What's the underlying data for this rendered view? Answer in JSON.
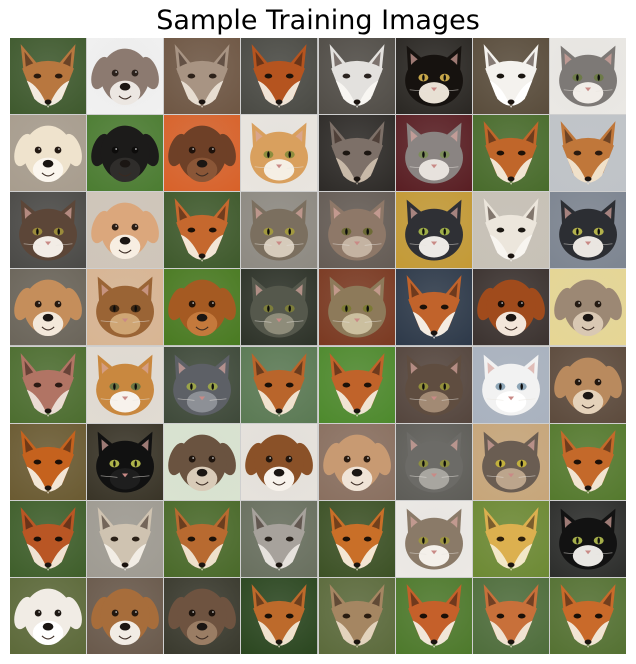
{
  "title": "Sample Training Images",
  "images": [
    {
      "animal": "fox",
      "bg": "#3f5a2e",
      "fur": "#b8773f",
      "accent": "#f2eadf",
      "eye": "#2a1a0e"
    },
    {
      "animal": "dog",
      "bg": "#f1f1f1",
      "fur": "#8c7a70",
      "accent": "#ece7e2",
      "eye": "#2c221c"
    },
    {
      "animal": "fox",
      "bg": "#6f5744",
      "fur": "#a89483",
      "accent": "#e7ddd1",
      "eye": "#2d221a"
    },
    {
      "animal": "fox",
      "bg": "#4a4a44",
      "fur": "#b5541f",
      "accent": "#f0e4d6",
      "eye": "#1d1209"
    },
    {
      "animal": "fox",
      "bg": "#514d47",
      "fur": "#e3e1de",
      "accent": "#f8f6f2",
      "eye": "#2b2420"
    },
    {
      "animal": "cat",
      "bg": "#2b2824",
      "fur": "#16120f",
      "accent": "#e8e0d4",
      "eye": "#c6a64a"
    },
    {
      "animal": "fox",
      "bg": "#5a4d3c",
      "fur": "#f4f2ee",
      "accent": "#ffffff",
      "eye": "#191510"
    },
    {
      "animal": "cat",
      "bg": "#eae8e4",
      "fur": "#7d7976",
      "accent": "#f1ede8",
      "eye": "#6d7a48"
    },
    {
      "animal": "dog",
      "bg": "#a89d8e",
      "fur": "#efe3cd",
      "accent": "#fbf6ee",
      "eye": "#241a13"
    },
    {
      "animal": "dog",
      "bg": "#4c7d32",
      "fur": "#1c1b1a",
      "accent": "#2f2d2b",
      "eye": "#0d0c0b"
    },
    {
      "animal": "dog",
      "bg": "#d8622a",
      "fur": "#6e4027",
      "accent": "#8a5637",
      "eye": "#1f120b"
    },
    {
      "animal": "cat",
      "bg": "#e9e5df",
      "fur": "#d9a05e",
      "accent": "#f5efe4",
      "eye": "#8d8d3e"
    },
    {
      "animal": "fox",
      "bg": "#2e2b28",
      "fur": "#7d7068",
      "accent": "#c8b9a8",
      "eye": "#1c1611"
    },
    {
      "animal": "cat",
      "bg": "#5a1f24",
      "fur": "#8a8482",
      "accent": "#e7e2dd",
      "eye": "#7d8e5a"
    },
    {
      "animal": "fox",
      "bg": "#496c2c",
      "fur": "#c0662a",
      "accent": "#f1e5d3",
      "eye": "#1c1108"
    },
    {
      "animal": "fox",
      "bg": "#bfc3c8",
      "fur": "#c0773a",
      "accent": "#f0e1ca",
      "eye": "#2a1a0f"
    },
    {
      "animal": "cat",
      "bg": "#4b4a47",
      "fur": "#5c4638",
      "accent": "#f2ece6",
      "eye": "#9b8b3b"
    },
    {
      "animal": "dog",
      "bg": "#cfc5b9",
      "fur": "#dba77c",
      "accent": "#f7eee2",
      "eye": "#2b1c12"
    },
    {
      "animal": "fox",
      "bg": "#3f5a2c",
      "fur": "#c5682e",
      "accent": "#f3e6d6",
      "eye": "#1a1008"
    },
    {
      "animal": "cat",
      "bg": "#8e8a82",
      "fur": "#7b6f5f",
      "accent": "#d6cbbb",
      "eye": "#a29940"
    },
    {
      "animal": "cat",
      "bg": "#655c55",
      "fur": "#8e7868",
      "accent": "#c4b3a2",
      "eye": "#6d6a36"
    },
    {
      "animal": "cat",
      "bg": "#c49a36",
      "fur": "#2f3035",
      "accent": "#ece9e5",
      "eye": "#9eae48"
    },
    {
      "animal": "fox",
      "bg": "#c7c1b6",
      "fur": "#ece6dc",
      "accent": "#f8f5f0",
      "eye": "#1c1813"
    },
    {
      "animal": "cat",
      "bg": "#7d8591",
      "fur": "#2c2e33",
      "accent": "#eae6e1",
      "eye": "#b3b24c"
    },
    {
      "animal": "dog",
      "bg": "#6b655a",
      "fur": "#c58e5b",
      "accent": "#f3e8da",
      "eye": "#261910"
    },
    {
      "animal": "cat",
      "bg": "#d8b593",
      "fur": "#9a6435",
      "accent": "#cfa675",
      "eye": "#3b2612"
    },
    {
      "animal": "dog",
      "bg": "#4a7b22",
      "fur": "#a55a22",
      "accent": "#c4793c",
      "eye": "#1f1208"
    },
    {
      "animal": "cat",
      "bg": "#2e3329",
      "fur": "#55584c",
      "accent": "#8e8c7a",
      "eye": "#7c7d3b"
    },
    {
      "animal": "cat",
      "bg": "#7b3a22",
      "fur": "#8d7a5a",
      "accent": "#cbbf9f",
      "eye": "#7c7a34"
    },
    {
      "animal": "fox",
      "bg": "#2e3a4a",
      "fur": "#c1632b",
      "accent": "#f4ece2",
      "eye": "#1d1209"
    },
    {
      "animal": "dog",
      "bg": "#3c3330",
      "fur": "#a04b1c",
      "accent": "#f3e6da",
      "eye": "#170d08"
    },
    {
      "animal": "dog",
      "bg": "#e6d694",
      "fur": "#9c8874",
      "accent": "#d9c8b3",
      "eye": "#251b13"
    },
    {
      "animal": "fox",
      "bg": "#4d6e30",
      "fur": "#b17464",
      "accent": "#eadcd3",
      "eye": "#2c1a14"
    },
    {
      "animal": "cat",
      "bg": "#e1dbd2",
      "fur": "#c9883f",
      "accent": "#f7f2ec",
      "eye": "#6d7743"
    },
    {
      "animal": "cat",
      "bg": "#3f4a3a",
      "fur": "#5d6066",
      "accent": "#8d9096",
      "eye": "#9aa34a"
    },
    {
      "animal": "fox",
      "bg": "#5b7a54",
      "fur": "#b9652b",
      "accent": "#f0e2cf",
      "eye": "#1a1008"
    },
    {
      "animal": "fox",
      "bg": "#4e8a2d",
      "fur": "#c0632a",
      "accent": "#f0e4d3",
      "eye": "#1c1109"
    },
    {
      "animal": "cat",
      "bg": "#55463e",
      "fur": "#5f4d40",
      "accent": "#a28a74",
      "eye": "#928f3b"
    },
    {
      "animal": "cat",
      "bg": "#a9b2bf",
      "fur": "#f2f2f2",
      "accent": "#ffffff",
      "eye": "#8fa7b8"
    },
    {
      "animal": "dog",
      "bg": "#5d4b3d",
      "fur": "#b98a5e",
      "accent": "#e5d2ba",
      "eye": "#22170f"
    },
    {
      "animal": "fox",
      "bg": "#6b5b32",
      "fur": "#c5621e",
      "accent": "#f2e6d6",
      "eye": "#1b0f07"
    },
    {
      "animal": "cat",
      "bg": "#3a3528",
      "fur": "#111111",
      "accent": "#1e1e1e",
      "eye": "#aeb44a"
    },
    {
      "animal": "dog",
      "bg": "#d9e3d0",
      "fur": "#6a5340",
      "accent": "#d9cbb8",
      "eye": "#1e140d"
    },
    {
      "animal": "dog",
      "bg": "#e6e2dc",
      "fur": "#8a5128",
      "accent": "#f7f2ec",
      "eye": "#21150c"
    },
    {
      "animal": "dog",
      "bg": "#8a7060",
      "fur": "#c89a72",
      "accent": "#f0e4d7",
      "eye": "#2a1b10"
    },
    {
      "animal": "cat",
      "bg": "#5e5d58",
      "fur": "#6c6b67",
      "accent": "#a8a6a0",
      "eye": "#8d8f40"
    },
    {
      "animal": "cat",
      "bg": "#c7a67a",
      "fur": "#6a5d52",
      "accent": "#bca58c",
      "eye": "#c2b03d"
    },
    {
      "animal": "fox",
      "bg": "#557a2e",
      "fur": "#c4692a",
      "accent": "#f1e4d1",
      "eye": "#1c1008"
    },
    {
      "animal": "fox",
      "bg": "#3f5f2b",
      "fur": "#b95624",
      "accent": "#efe2d2",
      "eye": "#180e07"
    },
    {
      "animal": "fox",
      "bg": "#9f9b92",
      "fur": "#cfc3b1",
      "accent": "#f2ede5",
      "eye": "#2b2118"
    },
    {
      "animal": "fox",
      "bg": "#4a6a2a",
      "fur": "#b86a30",
      "accent": "#eee0cc",
      "eye": "#1b1109"
    },
    {
      "animal": "fox",
      "bg": "#69705f",
      "fur": "#a7a29c",
      "accent": "#e6e2dd",
      "eye": "#26201b"
    },
    {
      "animal": "fox",
      "bg": "#3d5226",
      "fur": "#c96f28",
      "accent": "#f3e6d3",
      "eye": "#1b1007"
    },
    {
      "animal": "cat",
      "bg": "#ece9e5",
      "fur": "#8a7a68",
      "accent": "#f4f0ea",
      "eye": "#9d9542"
    },
    {
      "animal": "fox",
      "bg": "#6d8a34",
      "fur": "#dcb04f",
      "accent": "#f3e8c9",
      "eye": "#2b1d0c"
    },
    {
      "animal": "cat",
      "bg": "#2d2e2c",
      "fur": "#121212",
      "accent": "#e9e7e3",
      "eye": "#a5ae4a"
    },
    {
      "animal": "dog",
      "bg": "#5d6a3a",
      "fur": "#f1ece5",
      "accent": "#ffffff",
      "eye": "#1d1712"
    },
    {
      "animal": "dog",
      "bg": "#6a5a4c",
      "fur": "#a76d3b",
      "accent": "#f2ece5",
      "eye": "#22170f"
    },
    {
      "animal": "dog",
      "bg": "#3a3a2e",
      "fur": "#6e5340",
      "accent": "#9a7d64",
      "eye": "#1a120c"
    },
    {
      "animal": "fox",
      "bg": "#2b4720",
      "fur": "#bd6a2b",
      "accent": "#efe2ce",
      "eye": "#1a1007"
    },
    {
      "animal": "fox",
      "bg": "#5c6b3c",
      "fur": "#a58662",
      "accent": "#e3d3bd",
      "eye": "#2a1d11"
    },
    {
      "animal": "fox",
      "bg": "#4e7a2c",
      "fur": "#c5602a",
      "accent": "#f1e6d8",
      "eye": "#1b0f07"
    },
    {
      "animal": "fox",
      "bg": "#4f6e3c",
      "fur": "#c8703a",
      "accent": "#f0e3d2",
      "eye": "#1c1109"
    },
    {
      "animal": "fox",
      "bg": "#557233",
      "fur": "#c96a2a",
      "accent": "#f1e5d4",
      "eye": "#1a1007"
    }
  ]
}
